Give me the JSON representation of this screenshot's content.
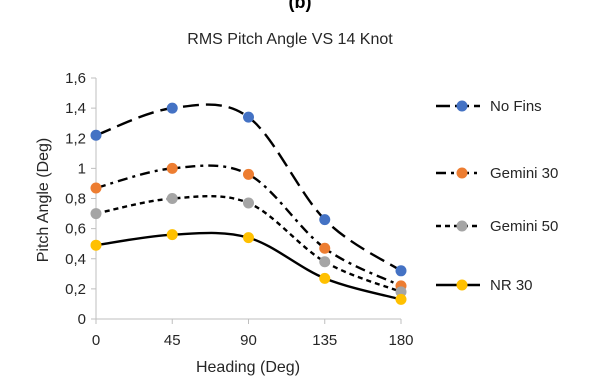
{
  "panel_label": "(b)",
  "chart_data": {
    "type": "line",
    "title": "RMS Pitch Angle VS 14 Knot",
    "xlabel": "Heading (Deg)",
    "ylabel": "Pitch Angle (Deg)",
    "x": [
      0,
      45,
      90,
      135,
      180
    ],
    "x_ticks": [
      "0",
      "45",
      "90",
      "135",
      "180"
    ],
    "y_ticks": [
      "0",
      "0,2",
      "0,4",
      "0,6",
      "0,8",
      "1",
      "1,2",
      "1,4",
      "1,6"
    ],
    "xlim": [
      0,
      180
    ],
    "ylim": [
      0,
      1.6
    ],
    "grid": false,
    "legend_position": "right",
    "series": [
      {
        "name": "No Fins",
        "values": [
          1.22,
          1.4,
          1.34,
          0.66,
          0.32
        ],
        "marker_color": "#4472C4",
        "dash": "long-dash"
      },
      {
        "name": "Gemini 30",
        "values": [
          0.87,
          1.0,
          0.96,
          0.47,
          0.22
        ],
        "marker_color": "#ED7D31",
        "dash": "dash-dot"
      },
      {
        "name": "Gemini 50",
        "values": [
          0.7,
          0.8,
          0.77,
          0.38,
          0.18
        ],
        "marker_color": "#A5A5A5",
        "dash": "short-dash"
      },
      {
        "name": "NR 30",
        "values": [
          0.49,
          0.56,
          0.54,
          0.27,
          0.13
        ],
        "marker_color": "#FFC000",
        "dash": "solid"
      }
    ]
  }
}
